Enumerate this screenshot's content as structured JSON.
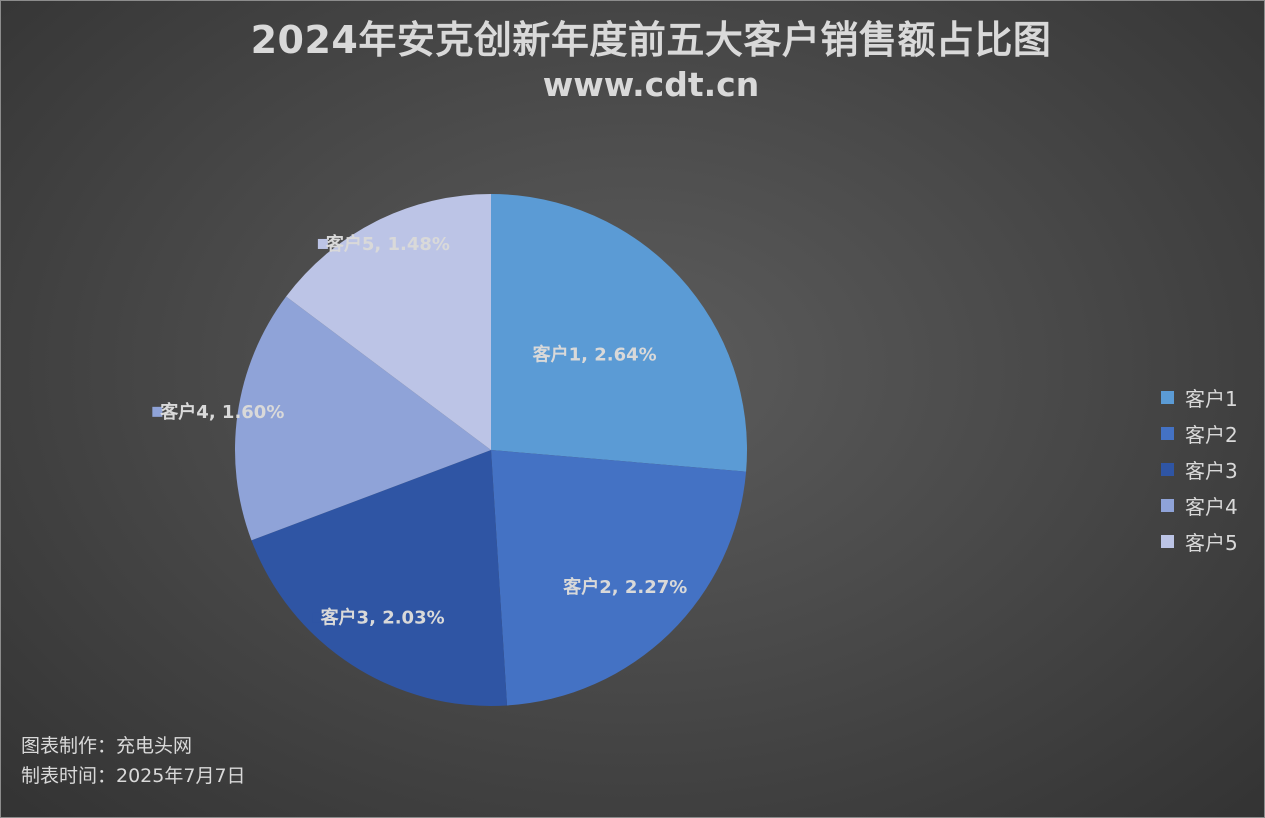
{
  "title": "2024年安克创新年度前五大客户销售额占比图",
  "subtitle": "www.cdt.cn",
  "chart_data": {
    "type": "pie",
    "categories": [
      "客户1",
      "客户2",
      "客户3",
      "客户4",
      "客户5"
    ],
    "values": [
      2.64,
      2.27,
      2.03,
      1.6,
      1.48
    ],
    "unit": "%",
    "data_labels": [
      "客户1, 2.64%",
      "客户2, 2.27%",
      "客户3, 2.03%",
      "客户4, 1.60%",
      "客户5, 1.48%"
    ],
    "colors": [
      "#5b9bd5",
      "#4472c4",
      "#2f55a4",
      "#8fa3d8",
      "#bcc4e6"
    ],
    "legend_position": "right",
    "start_angle": "12 o'clock, clockwise"
  },
  "legend": [
    "客户1",
    "客户2",
    "客户3",
    "客户4",
    "客户5"
  ],
  "footer": {
    "maker": "图表制作：充电头网",
    "date": "制表时间：2025年7月7日"
  }
}
